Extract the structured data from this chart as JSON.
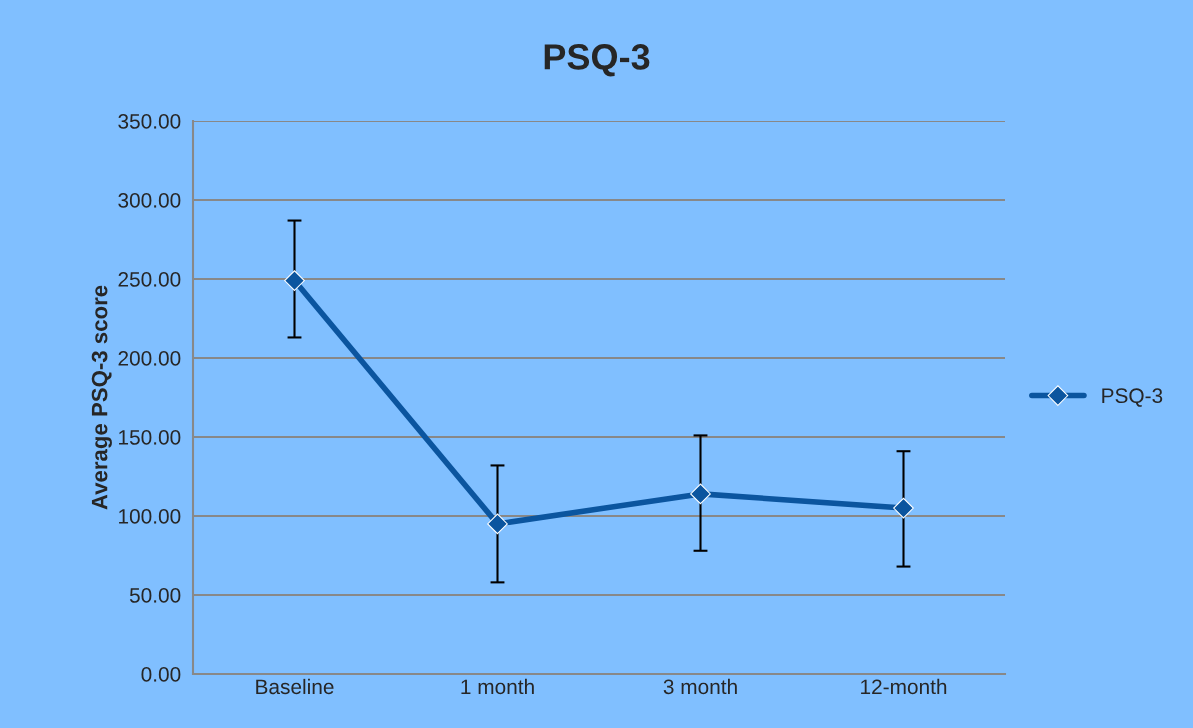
{
  "chart_data": {
    "type": "line",
    "title": "PSQ-3",
    "ylabel": "Average PSQ-3 score",
    "categories": [
      "Baseline",
      "1 month",
      "3 month",
      "12-month"
    ],
    "series": [
      {
        "name": "PSQ-3",
        "color": "#0b559f",
        "values": [
          249,
          95,
          114,
          105
        ],
        "errors": [
          [
            213,
            287
          ],
          [
            58,
            132
          ],
          [
            78,
            151
          ],
          [
            68,
            141
          ]
        ]
      }
    ],
    "ylim": [
      0,
      350
    ],
    "yticks": [
      {
        "value": 0,
        "label": "0.00"
      },
      {
        "value": 50,
        "label": "50.00"
      },
      {
        "value": 100,
        "label": "100.00"
      },
      {
        "value": 150,
        "label": "150.00"
      },
      {
        "value": 200,
        "label": "200.00"
      },
      {
        "value": 250,
        "label": "250.00"
      },
      {
        "value": 300,
        "label": "300.00"
      },
      {
        "value": 350,
        "label": "350.00"
      }
    ],
    "grid": "y",
    "legend": "right",
    "marker": "diamond",
    "line_style": "solid"
  }
}
